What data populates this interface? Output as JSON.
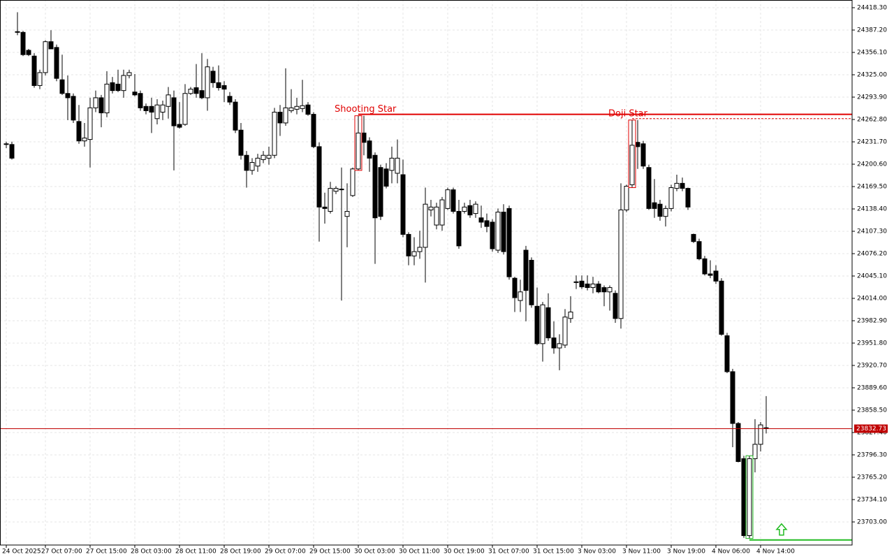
{
  "chart_data": {
    "type": "candlestick",
    "x": [
      "24 Oct 2025",
      null,
      null,
      null,
      null,
      null,
      null,
      "27 Oct 07:00",
      null,
      null,
      null,
      null,
      null,
      null,
      null,
      "27 Oct 15:00",
      null,
      null,
      null,
      null,
      null,
      null,
      null,
      "28 Oct 03:00",
      null,
      null,
      null,
      null,
      null,
      null,
      null,
      "28 Oct 11:00",
      null,
      null,
      null,
      null,
      null,
      null,
      null,
      "28 Oct 19:00",
      null,
      null,
      null,
      null,
      null,
      null,
      null,
      "29 Oct 07:00",
      null,
      null,
      null,
      null,
      null,
      null,
      null,
      "29 Oct 15:00",
      null,
      null,
      null,
      null,
      null,
      null,
      null,
      "30 Oct 03:00",
      null,
      null,
      null,
      null,
      null,
      null,
      null,
      "30 Oct 11:00",
      null,
      null,
      null,
      null,
      null,
      null,
      null,
      "30 Oct 19:00",
      null,
      null,
      null,
      null,
      null,
      null,
      null,
      "31 Oct 07:00",
      null,
      null,
      null,
      null,
      null,
      null,
      null,
      "31 Oct 15:00",
      null,
      null,
      null,
      null,
      null,
      null,
      null,
      "3 Nov 03:00",
      null,
      null,
      null,
      null,
      null,
      null,
      null,
      "3 Nov 11:00",
      null,
      null,
      null,
      null,
      null,
      null,
      null,
      "3 Nov 19:00",
      null,
      null,
      null,
      null,
      null,
      null,
      null,
      "4 Nov 06:00",
      null,
      null,
      null,
      null,
      null,
      null,
      null,
      "4 Nov 14:00",
      null
    ],
    "open": [
      24228,
      24228,
      24384,
      24384,
      24359,
      24351,
      24310,
      24328,
      24371,
      24363,
      24318,
      24299,
      24295,
      24260,
      24233,
      24235,
      24279,
      24293,
      24272,
      24314,
      24312,
      24303,
      24324,
      24301,
      24299,
      24281,
      24281,
      24264,
      24273,
      24281,
      24293,
      24256,
      24256,
      24299,
      24307,
      24303,
      24293,
      24330,
      24314,
      24310,
      24295,
      24287,
      24248,
      24213,
      24192,
      24198,
      24207,
      24209,
      24213,
      24273,
      24258,
      24275,
      24277,
      24278,
      24283,
      24270,
      24225,
      24141,
      24135,
      24163,
      24165,
      24128,
      24157,
      24194,
      24244,
      24233,
      24213,
      24196,
      24194,
      24192,
      24188,
      24186,
      24103,
      24073,
      24079,
      24085,
      24137,
      24116,
      24116,
      24139,
      24165,
      24135,
      24135,
      24143,
      24132,
      24126,
      24122,
      24120,
      24081,
      24134,
      24139,
      24042,
      24011,
      24081,
      24067,
      24003,
      23951,
      24001,
      23959,
      23945,
      23949,
      23986,
      24036,
      24038,
      24034,
      24029,
      24034,
      24029,
      24023,
      24021,
      23986,
      24137,
      24172,
      24231,
      24229,
      24196,
      24147,
      24145,
      24128,
      24139,
      24167,
      24174,
      24167,
      24103,
      24093,
      24069,
      24048,
      24052,
      24038,
      23962,
      23912,
      23840,
      23791,
      23684,
      23791,
      23811,
      23834
    ],
    "high": [
      24232,
      24232,
      24412,
      24386,
      24361,
      24355,
      24332,
      24373,
      24387,
      24367,
      24353,
      24324,
      24299,
      24283,
      24258,
      24293,
      24303,
      24297,
      24330,
      24322,
      24332,
      24332,
      24332,
      24326,
      24303,
      24285,
      24293,
      24291,
      24289,
      24308,
      24303,
      24287,
      24312,
      24308,
      24340,
      24355,
      24347,
      24336,
      24338,
      24316,
      24301,
      24291,
      24258,
      24219,
      24209,
      24215,
      24219,
      24225,
      24279,
      24283,
      24334,
      24305,
      24293,
      24318,
      24287,
      24273,
      24231,
      24161,
      24176,
      24170,
      24196,
      24174,
      24196,
      24268,
      24268,
      24238,
      24217,
      24200,
      24202,
      24225,
      24235,
      24207,
      24106,
      24099,
      24108,
      24168,
      24151,
      24147,
      24155,
      24168,
      24168,
      24151,
      24147,
      24151,
      24149,
      24143,
      24132,
      24124,
      24139,
      24145,
      24143,
      24044,
      24040,
      24087,
      24071,
      24029,
      24009,
      24021,
      23982,
      23964,
      23999,
      24017,
      24046,
      24046,
      24046,
      24044,
      24038,
      24032,
      24032,
      24025,
      24174,
      24172,
      24262,
      24262,
      24233,
      24200,
      24180,
      24151,
      24143,
      24172,
      24186,
      24182,
      24168,
      24104,
      24097,
      24073,
      24067,
      24060,
      24042,
      23966,
      23916,
      23842,
      23795,
      23795,
      23846,
      23842,
      23878
    ],
    "low": [
      24223,
      24207,
      24380,
      24351,
      24351,
      24307,
      24305,
      24324,
      24361,
      24316,
      24297,
      24262,
      24258,
      24229,
      24225,
      24196,
      24273,
      24252,
      24266,
      24299,
      24301,
      24293,
      24320,
      24295,
      24275,
      24270,
      24244,
      24256,
      24262,
      24264,
      24192,
      24250,
      24254,
      24297,
      24293,
      24291,
      24275,
      24307,
      24303,
      24287,
      24283,
      24244,
      24207,
      24168,
      24186,
      24190,
      24202,
      24200,
      24209,
      24240,
      24254,
      24272,
      24270,
      24273,
      24268,
      24223,
      24093,
      24118,
      24132,
      24159,
      24011,
      24085,
      24155,
      24192,
      24213,
      24190,
      24062,
      24123,
      24167,
      24174,
      24174,
      24099,
      24060,
      24060,
      24069,
      24036,
      24128,
      24110,
      24108,
      24137,
      24132,
      24083,
      24132,
      24126,
      24126,
      24112,
      24106,
      24079,
      24077,
      24075,
      24040,
      23995,
      23995,
      23982,
      24001,
      23949,
      23926,
      23955,
      23937,
      23914,
      23945,
      23980,
      24027,
      24027,
      24025,
      24021,
      24021,
      24003,
      23997,
      23980,
      23972,
      24134,
      24168,
      24194,
      24194,
      24137,
      24126,
      24122,
      24114,
      24135,
      24163,
      24163,
      24137,
      24091,
      24067,
      24046,
      24042,
      24034,
      23962,
      23910,
      23807,
      23786,
      23681,
      23680,
      23772,
      23801,
      23826
    ],
    "close": [
      24229,
      24209,
      24385,
      24353,
      24353,
      24310,
      24328,
      24371,
      24361,
      24320,
      24299,
      24293,
      24262,
      24233,
      24237,
      24279,
      24293,
      24272,
      24312,
      24303,
      24303,
      24324,
      24328,
      24297,
      24279,
      24275,
      24273,
      24283,
      24283,
      24297,
      24254,
      24252,
      24299,
      24305,
      24299,
      24293,
      24336,
      24314,
      24307,
      24305,
      24287,
      24248,
      24213,
      24192,
      24203,
      24209,
      24213,
      24213,
      24273,
      24258,
      24279,
      24279,
      24281,
      24282,
      24270,
      24225,
      24141,
      24139,
      24167,
      24167,
      24166,
      24135,
      24194,
      24244,
      24231,
      24209,
      24126,
      24128,
      24170,
      24209,
      24209,
      24103,
      24073,
      24079,
      24085,
      24145,
      24141,
      24141,
      24151,
      24165,
      24135,
      24087,
      24141,
      24130,
      24145,
      24120,
      24114,
      24083,
      24134,
      24079,
      24044,
      24015,
      24023,
      24025,
      24005,
      23951,
      24005,
      23959,
      23945,
      23951,
      23988,
      23995,
      24037,
      24030,
      24029,
      24034,
      24023,
      24023,
      24029,
      23986,
      24137,
      24170,
      24227,
      24225,
      24198,
      24139,
      24139,
      24128,
      24139,
      24168,
      24174,
      24167,
      24141,
      24093,
      24069,
      24048,
      24046,
      24038,
      23964,
      23912,
      23840,
      23787,
      23684,
      23791,
      23811,
      23838,
      23832.73
    ],
    "ylim": [
      23670.9,
      24429.0
    ],
    "yticks": [
      {
        "value": 24418.3,
        "label": "24418.30"
      },
      {
        "value": 24387.2,
        "label": "24387.20"
      },
      {
        "value": 24356.1,
        "label": "24356.10"
      },
      {
        "value": 24325.0,
        "label": "24325.00"
      },
      {
        "value": 24293.9,
        "label": "24293.90"
      },
      {
        "value": 24262.8,
        "label": "24262.80"
      },
      {
        "value": 24231.7,
        "label": "24231.70"
      },
      {
        "value": 24200.6,
        "label": "24200.60"
      },
      {
        "value": 24169.5,
        "label": "24169.50"
      },
      {
        "value": 24138.4,
        "label": "24138.40"
      },
      {
        "value": 24107.3,
        "label": "24107.30"
      },
      {
        "value": 24076.2,
        "label": "24076.20"
      },
      {
        "value": 24045.1,
        "label": "24045.10"
      },
      {
        "value": 24014.0,
        "label": "24014.00"
      },
      {
        "value": 23982.9,
        "label": "23982.90"
      },
      {
        "value": 23951.8,
        "label": "23951.80"
      },
      {
        "value": 23920.7,
        "label": "23920.70"
      },
      {
        "value": 23889.6,
        "label": "23889.60"
      },
      {
        "value": 23858.5,
        "label": "23858.50"
      },
      {
        "value": 23827.4,
        "label": "23827.40"
      },
      {
        "value": 23796.3,
        "label": "23796.30"
      },
      {
        "value": 23765.2,
        "label": "23765.20"
      },
      {
        "value": 23734.1,
        "label": "23734.10"
      },
      {
        "value": 23703.0,
        "label": "23703.00"
      }
    ],
    "grid": true,
    "up_color": "#ffffff",
    "down_color": "#000000",
    "current_price": {
      "value": 23832.73,
      "color": "#c00000"
    },
    "patterns": [
      {
        "name": "Shooting Star",
        "candle": 63,
        "level": 24270,
        "color": "#e00000",
        "line_style": "solid"
      },
      {
        "name": "Doji Star",
        "candle": 112,
        "level": 24264,
        "color": "#e00000",
        "line_style": "dashed"
      }
    ],
    "signals": [
      {
        "candle": 133,
        "level": 23678,
        "color": "#22bb22"
      }
    ]
  }
}
